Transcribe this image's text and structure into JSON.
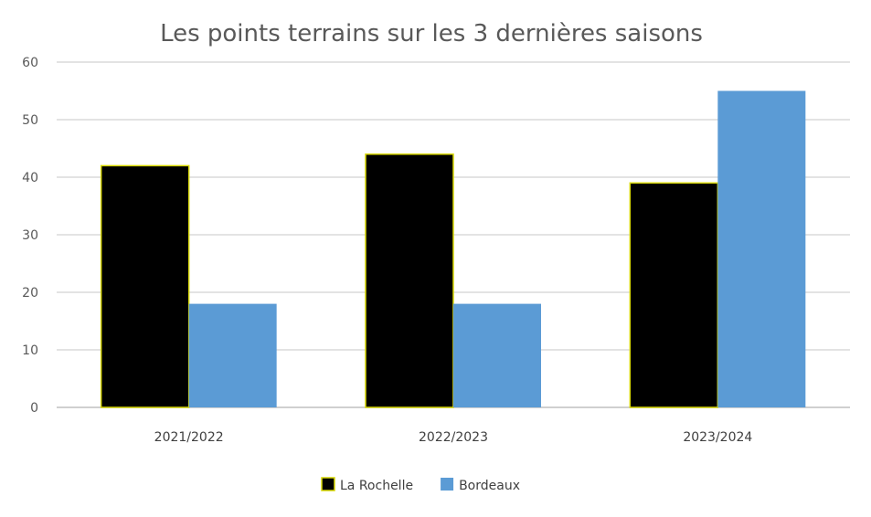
{
  "chart_data": {
    "type": "bar",
    "title": "Les points terrains sur les 3 dernières saisons",
    "categories": [
      "2021/2022",
      "2022/2023",
      "2023/2024"
    ],
    "series": [
      {
        "name": "La Rochelle",
        "values": [
          42,
          44,
          39
        ],
        "color": "#000000",
        "border": "#d8d800"
      },
      {
        "name": "Bordeaux",
        "values": [
          18,
          18,
          55
        ],
        "color": "#5b9bd5"
      }
    ],
    "xlabel": "",
    "ylabel": "",
    "ylim": [
      0,
      60
    ],
    "yticks": [
      0,
      10,
      20,
      30,
      40,
      50,
      60
    ],
    "grid": true,
    "legend": "bottom"
  }
}
